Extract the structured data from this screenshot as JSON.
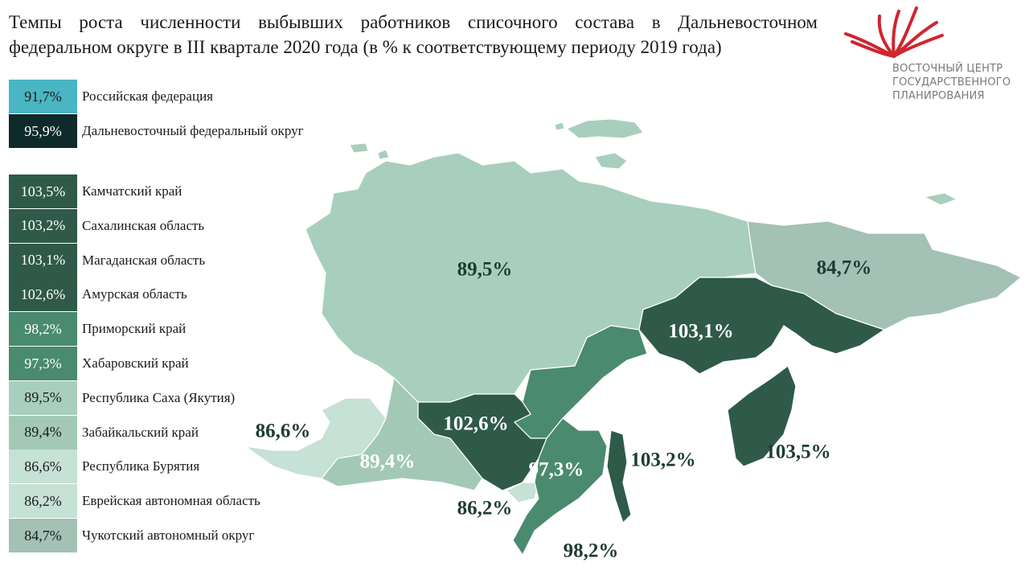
{
  "title": "Темпы роста численности выбывших работников списочного состава в Дальневосточном федеральном округе в III квартале 2020 года (в % к соответствующему периоду 2019 года)",
  "logo": {
    "lines": [
      "ВОСТОЧНЫЙ ЦЕНТР",
      "ГОСУДАРСТВЕННОГО",
      "ПЛАНИРОВАНИЯ"
    ]
  },
  "summary": [
    {
      "value": "91,7%",
      "name": "Российская федерация",
      "color": "#4ab5c3"
    },
    {
      "value": "95,9%",
      "name": "Дальневосточный федеральный округ",
      "color": "#0f2a2a"
    }
  ],
  "regions": [
    {
      "value": "103,5%",
      "name": "Камчатский край",
      "color": "#2f5a49"
    },
    {
      "value": "103,2%",
      "name": "Сахалинская область",
      "color": "#2f5a49"
    },
    {
      "value": "103,1%",
      "name": "Магаданская область",
      "color": "#2f5a49"
    },
    {
      "value": "102,6%",
      "name": "Амурская область",
      "color": "#2f5a49"
    },
    {
      "value": "98,2%",
      "name": "Приморский край",
      "color": "#4a8a6e"
    },
    {
      "value": "97,3%",
      "name": "Хабаровский край",
      "color": "#4a8a6e"
    },
    {
      "value": "89,5%",
      "name": "Республика Саха (Якутия)",
      "color": "#a8cfbd"
    },
    {
      "value": "89,4%",
      "name": "Забайкальский край",
      "color": "#a3c9b6"
    },
    {
      "value": "86,6%",
      "name": "Республика Бурятия",
      "color": "#c6e1d6"
    },
    {
      "value": "86,2%",
      "name": "Еврейская автономная область",
      "color": "#c6e1d6"
    },
    {
      "value": "84,7%",
      "name": "Чукотский автономный округ",
      "color": "#a3c1b5"
    }
  ]
}
